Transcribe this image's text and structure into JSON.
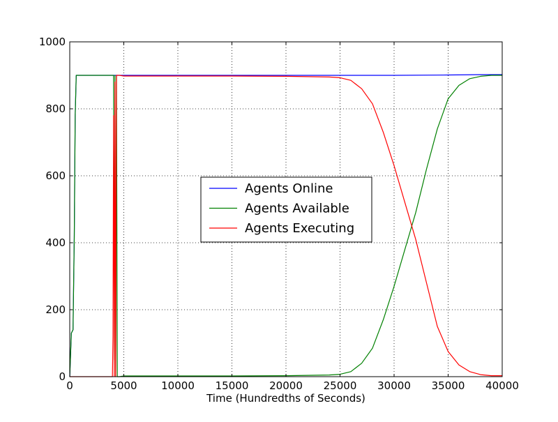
{
  "chart_data": {
    "type": "line",
    "title": "",
    "xlabel": "Time (Hundredths of Seconds)",
    "ylabel": "",
    "xlim": [
      0,
      40000
    ],
    "ylim": [
      0,
      1000
    ],
    "xticks": [
      0,
      5000,
      10000,
      15000,
      20000,
      25000,
      30000,
      35000,
      40000
    ],
    "yticks": [
      0,
      200,
      400,
      600,
      800,
      1000
    ],
    "xtick_labels": [
      "0",
      "5000",
      "10000",
      "15000",
      "20000",
      "25000",
      "30000",
      "35000",
      "40000"
    ],
    "ytick_labels": [
      "0",
      "200",
      "400",
      "600",
      "800",
      "1000"
    ],
    "grid": true,
    "legend_position": "center",
    "series": [
      {
        "name": "Agents Online",
        "color": "#0000ff",
        "x": [
          0,
          150,
          300,
          420,
          500,
          600,
          700,
          5000,
          10000,
          15000,
          20000,
          25000,
          30000,
          35000,
          38000,
          40000
        ],
        "y": [
          0,
          130,
          140,
          420,
          780,
          900,
          900,
          900,
          900,
          900,
          900,
          900,
          900,
          901,
          902,
          902
        ]
      },
      {
        "name": "Agents Available",
        "color": "#008000",
        "x": [
          0,
          150,
          300,
          420,
          500,
          600,
          700,
          4000,
          4050,
          4120,
          4180,
          4250,
          4320,
          4400,
          4600,
          5000,
          10000,
          15000,
          20000,
          24000,
          25000,
          26000,
          27000,
          28000,
          29000,
          30000,
          31000,
          32000,
          33000,
          34000,
          35000,
          36000,
          37000,
          38000,
          39000,
          40000
        ],
        "y": [
          0,
          130,
          140,
          420,
          780,
          900,
          900,
          900,
          900,
          50,
          900,
          0,
          900,
          0,
          0,
          2,
          2,
          2,
          3,
          5,
          7,
          15,
          40,
          85,
          170,
          270,
          380,
          490,
          620,
          740,
          830,
          870,
          890,
          897,
          900,
          900
        ]
      },
      {
        "name": "Agents Executing",
        "color": "#ff0000",
        "x": [
          0,
          3950,
          4000,
          4050,
          4120,
          4180,
          4250,
          4320,
          4400,
          4600,
          5000,
          10000,
          15000,
          20000,
          24000,
          25000,
          26000,
          27000,
          28000,
          29000,
          30000,
          31000,
          32000,
          33000,
          34000,
          35000,
          36000,
          37000,
          38000,
          39000,
          40000
        ],
        "y": [
          0,
          0,
          120,
          780,
          0,
          880,
          0,
          900,
          900,
          900,
          898,
          898,
          898,
          897,
          895,
          893,
          885,
          860,
          815,
          730,
          630,
          520,
          410,
          280,
          150,
          75,
          35,
          15,
          6,
          3,
          3
        ]
      }
    ]
  }
}
